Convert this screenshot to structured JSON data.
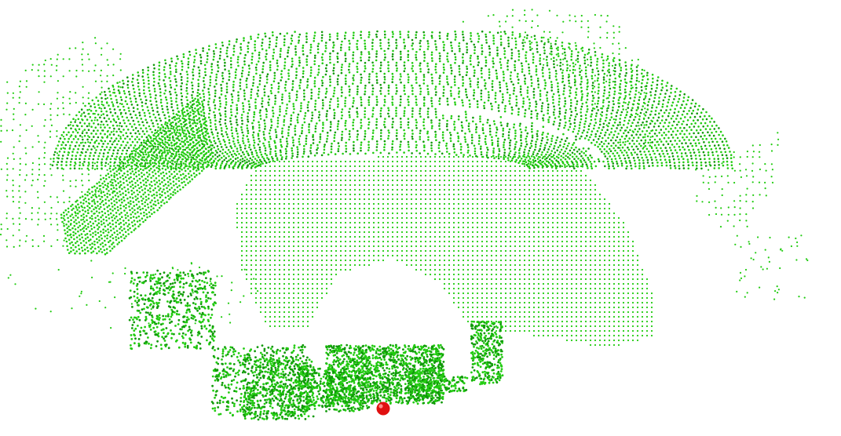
{
  "scene": {
    "background_color": "#ffffff",
    "point_color": "#22cc11",
    "point_color_dark": "#119a0a",
    "marker_color": "#e01010",
    "marker_highlight": "#ff8a8a",
    "regions": [
      "canopy-ring",
      "left-wing",
      "ground-plane",
      "left-sparse-cloud",
      "top-sparse-cloud",
      "right-cluster",
      "bottom-vegetation",
      "left-vegetation",
      "right-vegetation"
    ],
    "marker_icon": "sensor-origin-icon"
  }
}
